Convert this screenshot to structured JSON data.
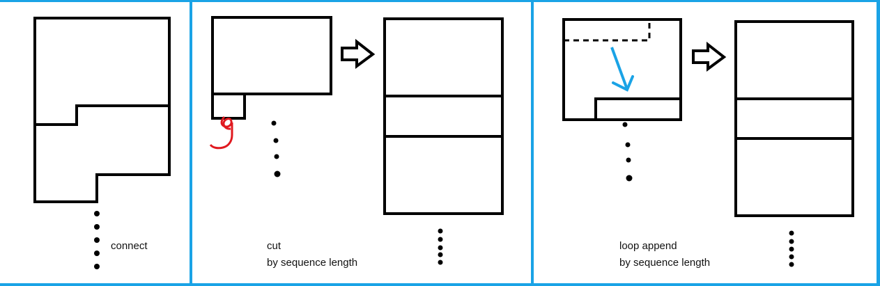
{
  "colors": {
    "divider": "#1aa3e6",
    "stroke": "#000000",
    "arrow_accent": "#1aa3e6",
    "scribble": "#e0191f",
    "background": "#ffffff"
  },
  "panels": [
    {
      "caption_lines": [
        "connect"
      ]
    },
    {
      "caption_lines": [
        "cut",
        "by sequence length"
      ]
    },
    {
      "caption_lines": [
        "loop append",
        "by sequence length"
      ]
    }
  ]
}
